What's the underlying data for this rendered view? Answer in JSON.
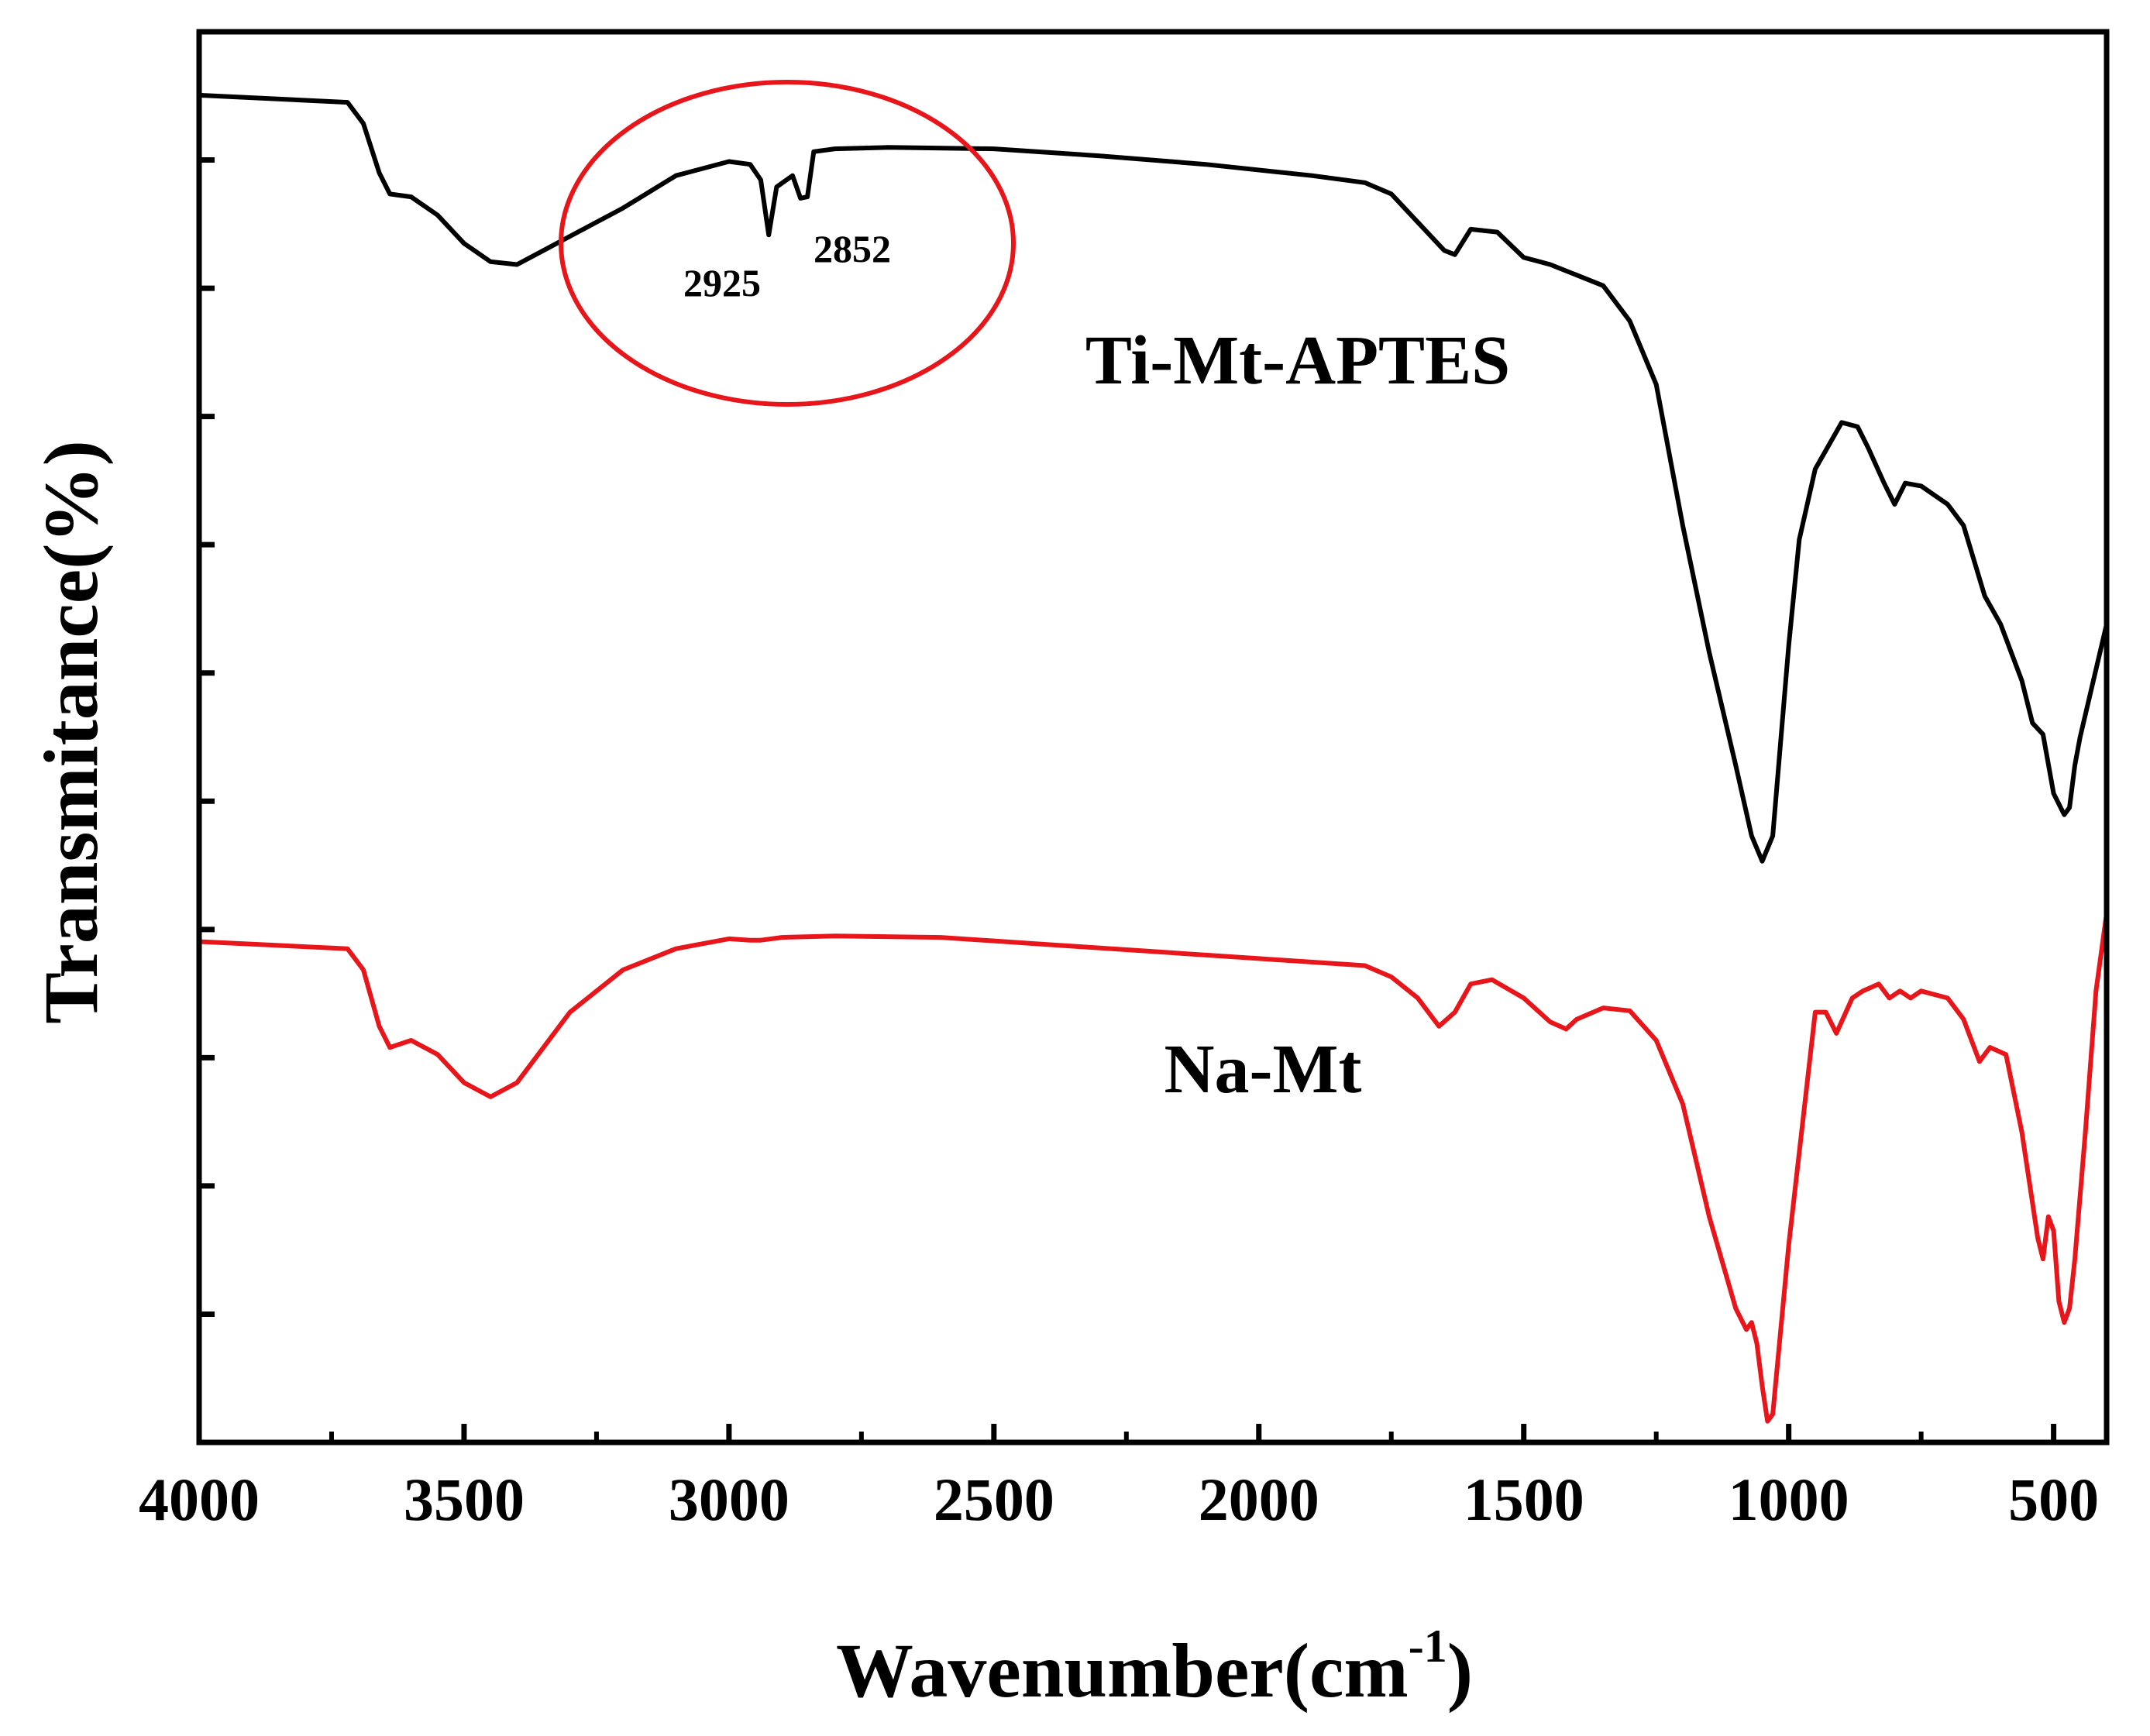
{
  "chart_data": {
    "type": "line",
    "title": "",
    "xlabel": "Wavenumber(cm",
    "xlabel_sup": "-1",
    "xlabel_close": ")",
    "ylabel": "Transmitance(%)",
    "xlim": [
      4000,
      400
    ],
    "ylim": [
      0,
      100
    ],
    "x_ticks": [
      4000,
      3500,
      3000,
      2500,
      2000,
      1500,
      1000,
      500
    ],
    "x_minor_ticks": [
      3750,
      3250,
      2750,
      2250,
      1750,
      1250,
      750
    ],
    "y_tick_count": 11,
    "series": [
      {
        "name": "Ti-Mt-APTES",
        "color": "#000000",
        "x": [
          4000,
          3720,
          3690,
          3660,
          3640,
          3600,
          3550,
          3500,
          3450,
          3400,
          3350,
          3300,
          3200,
          3100,
          3000,
          2960,
          2940,
          2925,
          2910,
          2880,
          2865,
          2852,
          2840,
          2800,
          2700,
          2500,
          2300,
          2100,
          1900,
          1800,
          1750,
          1700,
          1650,
          1630,
          1600,
          1550,
          1500,
          1480,
          1450,
          1350,
          1300,
          1250,
          1200,
          1150,
          1100,
          1070,
          1050,
          1030,
          1000,
          980,
          950,
          900,
          870,
          850,
          820,
          800,
          780,
          750,
          700,
          670,
          630,
          600,
          560,
          540,
          520,
          500,
          480,
          470,
          460,
          450,
          400
        ],
        "y": [
          95.5,
          95.0,
          93.5,
          90.0,
          88.5,
          88.3,
          87.0,
          85.0,
          83.7,
          83.5,
          84.5,
          85.5,
          87.5,
          89.8,
          90.8,
          90.6,
          89.5,
          85.6,
          89.0,
          89.8,
          88.2,
          88.3,
          91.5,
          91.7,
          91.8,
          91.7,
          91.2,
          90.6,
          89.8,
          89.3,
          88.5,
          86.5,
          84.5,
          84.2,
          86.0,
          85.8,
          84.0,
          83.8,
          83.5,
          82.0,
          79.5,
          75.0,
          65.0,
          56.0,
          48.0,
          43.0,
          41.2,
          43.0,
          56.5,
          64.0,
          69.0,
          72.3,
          72.0,
          70.5,
          68.0,
          66.5,
          68.0,
          67.8,
          66.5,
          65.0,
          60.0,
          58.0,
          54.0,
          51.0,
          50.2,
          46.0,
          44.5,
          45.0,
          48.0,
          50.0,
          58.0
        ]
      },
      {
        "name": "Na-Mt",
        "color": "#e8151b",
        "x": [
          4000,
          3720,
          3690,
          3660,
          3640,
          3600,
          3550,
          3500,
          3450,
          3400,
          3350,
          3300,
          3200,
          3100,
          3000,
          2960,
          2940,
          2900,
          2800,
          2600,
          2400,
          2200,
          2000,
          1800,
          1750,
          1700,
          1660,
          1630,
          1600,
          1560,
          1500,
          1450,
          1420,
          1400,
          1350,
          1300,
          1250,
          1200,
          1150,
          1100,
          1080,
          1070,
          1060,
          1050,
          1040,
          1030,
          1000,
          950,
          930,
          910,
          880,
          860,
          830,
          810,
          790,
          770,
          750,
          700,
          670,
          640,
          620,
          590,
          560,
          530,
          520,
          510,
          500,
          490,
          480,
          470,
          460,
          440,
          420,
          400
        ],
        "y": [
          35.5,
          35.0,
          33.5,
          29.5,
          28.0,
          28.5,
          27.5,
          25.5,
          24.5,
          25.5,
          28.0,
          30.5,
          33.5,
          35.0,
          35.7,
          35.6,
          35.6,
          35.8,
          35.9,
          35.8,
          35.3,
          34.8,
          34.3,
          33.8,
          33.0,
          31.5,
          29.5,
          30.5,
          32.5,
          32.8,
          31.5,
          29.8,
          29.3,
          30.0,
          30.8,
          30.6,
          28.5,
          24.0,
          16.0,
          9.5,
          8.0,
          8.5,
          7.0,
          4.0,
          1.5,
          2.0,
          14.0,
          30.5,
          30.5,
          29.0,
          31.5,
          32.0,
          32.5,
          31.5,
          32.0,
          31.5,
          32.0,
          31.5,
          30.0,
          27.0,
          28.0,
          27.5,
          22.0,
          14.5,
          13.0,
          16.0,
          15.0,
          10.0,
          8.5,
          9.5,
          13.0,
          22.0,
          32.0,
          37.5
        ]
      }
    ],
    "annotations": {
      "series_labels": [
        "Ti-Mt-APTES",
        "Na-Mt"
      ],
      "peak_labels": [
        "2925",
        "2852"
      ],
      "circle_color": "#e8151b"
    }
  }
}
